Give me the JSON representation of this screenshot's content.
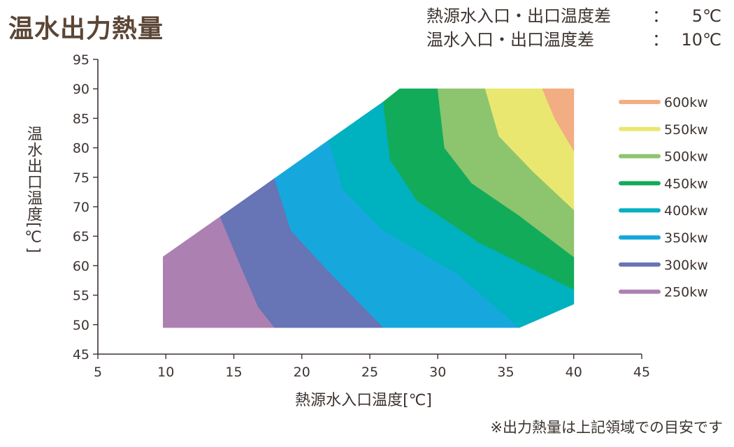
{
  "title": "温水出力熱量",
  "conditions": [
    {
      "label": "熱源水入口・出口温度差",
      "colon": "：",
      "value": "5℃"
    },
    {
      "label": "温水入口・出口温度差",
      "colon": "：",
      "value": "10℃"
    }
  ],
  "note": "※出力熱量は上記領域での目安です",
  "colors": {
    "250kw": "#ad80b2",
    "300kw": "#6774b5",
    "350kw": "#16a8dc",
    "400kw": "#00b1c0",
    "450kw": "#12ab5a",
    "500kw": "#8cc56d",
    "550kw": "#eae771",
    "600kw": "#f3ad82"
  },
  "chart_data": {
    "type": "area",
    "title": "",
    "xlabel": "熱源水入口温度[℃]",
    "ylabel": "温水出口温度[℃]",
    "xlim": [
      5,
      45
    ],
    "ylim": [
      45,
      95
    ],
    "xticks": [
      "5",
      "10",
      "15",
      "20",
      "25",
      "30",
      "35",
      "40",
      "45"
    ],
    "yticks": [
      "45",
      "50",
      "55",
      "60",
      "65",
      "70",
      "75",
      "80",
      "85",
      "90",
      "95"
    ],
    "legend_position": "right",
    "legend": [
      {
        "label": "600kw",
        "color": "#f3ad82"
      },
      {
        "label": "550kw",
        "color": "#eae771"
      },
      {
        "label": "500kw",
        "color": "#8cc56d"
      },
      {
        "label": "450kw",
        "color": "#12ab5a"
      },
      {
        "label": "400kw",
        "color": "#00b1c0"
      },
      {
        "label": "350kw",
        "color": "#16a8dc"
      },
      {
        "label": "300kw",
        "color": "#6774b5"
      },
      {
        "label": "250kw",
        "color": "#ad80b2"
      }
    ],
    "region": [
      [
        9.8,
        49.5
      ],
      [
        9.8,
        61.5
      ],
      [
        27.2,
        90
      ],
      [
        40,
        90
      ],
      [
        40,
        53.5
      ],
      [
        36,
        49.5
      ]
    ],
    "bands": [
      {
        "name": "250kw",
        "color": "#ad80b2",
        "polygon": [
          [
            9.8,
            49.5
          ],
          [
            9.8,
            61.5
          ],
          [
            14,
            68.3
          ],
          [
            15.5,
            60
          ],
          [
            16.8,
            53
          ],
          [
            18,
            49.5
          ]
        ]
      },
      {
        "name": "300kw",
        "color": "#6774b5",
        "polygon": [
          [
            14,
            68.3
          ],
          [
            18,
            74.8
          ],
          [
            19.2,
            66
          ],
          [
            22,
            59
          ],
          [
            26,
            49.5
          ],
          [
            18,
            49.5
          ],
          [
            16.8,
            53
          ],
          [
            15.5,
            60
          ]
        ]
      },
      {
        "name": "350kw",
        "color": "#16a8dc",
        "polygon": [
          [
            18,
            74.8
          ],
          [
            22,
            81.3
          ],
          [
            23,
            73
          ],
          [
            26,
            66
          ],
          [
            31.5,
            58.5
          ],
          [
            36,
            49.5
          ],
          [
            26,
            49.5
          ],
          [
            22,
            59
          ],
          [
            19.2,
            66
          ]
        ]
      },
      {
        "name": "400kw",
        "color": "#00b1c0",
        "polygon": [
          [
            22,
            81.3
          ],
          [
            26,
            87.8
          ],
          [
            26.5,
            78
          ],
          [
            28.5,
            71
          ],
          [
            33,
            64
          ],
          [
            40,
            56
          ],
          [
            40,
            53.5
          ],
          [
            36,
            49.5
          ],
          [
            31.5,
            58.5
          ],
          [
            26,
            66
          ],
          [
            23,
            73
          ]
        ]
      },
      {
        "name": "450kw",
        "color": "#12ab5a",
        "polygon": [
          [
            26,
            87.8
          ],
          [
            27.2,
            90
          ],
          [
            30,
            90
          ],
          [
            30.5,
            80
          ],
          [
            32.5,
            74
          ],
          [
            36,
            68.5
          ],
          [
            40,
            61.5
          ],
          [
            40,
            56
          ],
          [
            33,
            64
          ],
          [
            28.5,
            71
          ],
          [
            26.5,
            78
          ]
        ]
      },
      {
        "name": "500kw",
        "color": "#8cc56d",
        "polygon": [
          [
            30,
            90
          ],
          [
            33.5,
            90
          ],
          [
            34.5,
            82
          ],
          [
            37,
            76
          ],
          [
            40,
            69.5
          ],
          [
            40,
            61.5
          ],
          [
            36,
            68.5
          ],
          [
            32.5,
            74
          ],
          [
            30.5,
            80
          ]
        ]
      },
      {
        "name": "550kw",
        "color": "#eae771",
        "polygon": [
          [
            33.5,
            90
          ],
          [
            37.7,
            90
          ],
          [
            38.6,
            85
          ],
          [
            40,
            79.5
          ],
          [
            40,
            69.5
          ],
          [
            37,
            76
          ],
          [
            34.5,
            82
          ]
        ]
      },
      {
        "name": "600kw",
        "color": "#f3ad82",
        "polygon": [
          [
            37.7,
            90
          ],
          [
            40,
            90
          ],
          [
            40,
            79.5
          ],
          [
            38.6,
            85
          ]
        ]
      }
    ]
  }
}
